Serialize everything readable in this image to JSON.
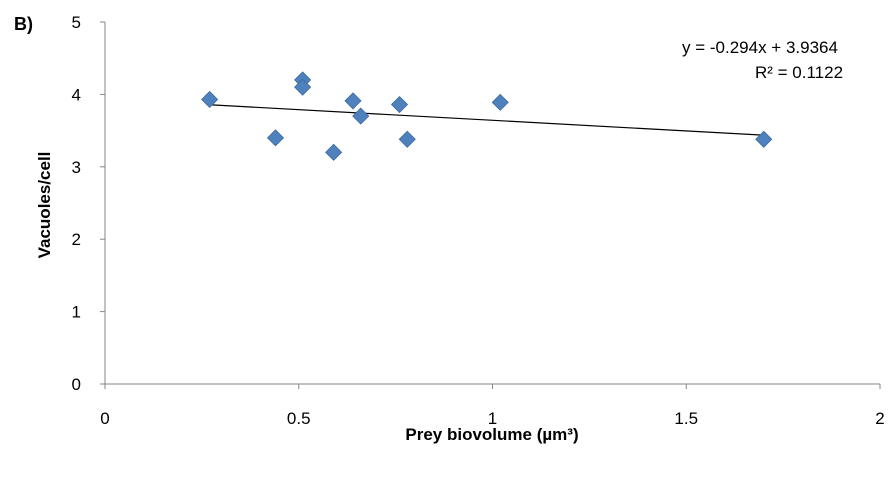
{
  "panel_label": "B)",
  "chart_data": {
    "type": "scatter",
    "title": "",
    "xlabel": "Prey biovolume (µm³)",
    "ylabel": "Vacuoles/cell",
    "xlim": [
      0,
      2
    ],
    "ylim": [
      0,
      5
    ],
    "x_ticks": [
      "0",
      "0.5",
      "1",
      "1.5",
      "2"
    ],
    "y_ticks": [
      "0",
      "1",
      "2",
      "3",
      "4",
      "5"
    ],
    "grid": false,
    "marker_color": "#4F81BD",
    "marker": "diamond",
    "series": [
      {
        "points": [
          {
            "x": 0.27,
            "y": 3.93
          },
          {
            "x": 0.44,
            "y": 3.4
          },
          {
            "x": 0.51,
            "y": 4.2
          },
          {
            "x": 0.51,
            "y": 4.1
          },
          {
            "x": 0.59,
            "y": 3.2
          },
          {
            "x": 0.64,
            "y": 3.91
          },
          {
            "x": 0.66,
            "y": 3.7
          },
          {
            "x": 0.76,
            "y": 3.86
          },
          {
            "x": 0.78,
            "y": 3.38
          },
          {
            "x": 1.02,
            "y": 3.89
          },
          {
            "x": 1.7,
            "y": 3.38
          }
        ]
      }
    ],
    "trendline": {
      "type": "linear",
      "slope": -0.294,
      "intercept": 3.9364,
      "x_range": [
        0.27,
        1.7
      ],
      "color": "#000000",
      "equation_label": "y = -0.294x + 3.9364",
      "r2_label": "R² = 0.1122"
    }
  }
}
